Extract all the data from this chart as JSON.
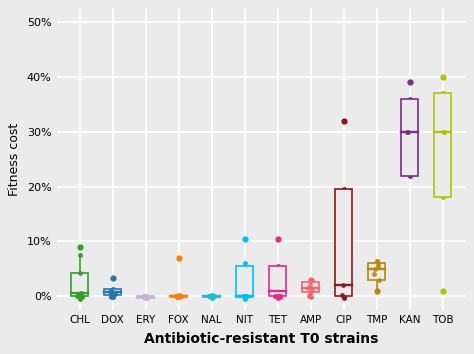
{
  "categories": [
    "CHL",
    "DOX",
    "ERY",
    "FOX",
    "NAL",
    "NIT",
    "TET",
    "AMP",
    "CIP",
    "TMP",
    "KAN",
    "TOB"
  ],
  "colors": [
    "#33a02c",
    "#1f78b4",
    "#cab2d6",
    "#ff7f00",
    "#17becf",
    "#00bfff",
    "#e7298a",
    "#f4636c",
    "#8b1a1a",
    "#b8860b",
    "#7b2d8b",
    "#b2c400"
  ],
  "boxes": [
    {
      "q1": 0.0,
      "median": 0.005,
      "q3": 0.042,
      "whislo": -0.005,
      "whishi": 0.075,
      "pts": [
        0.0,
        0.0,
        -0.002,
        0.0,
        0.0,
        0.001,
        0.0,
        -0.001,
        0.042,
        0.005
      ],
      "fliers_high": [
        0.09
      ],
      "fliers_low": []
    },
    {
      "q1": 0.003,
      "median": 0.007,
      "q3": 0.013,
      "whislo": -0.001,
      "whishi": 0.013,
      "pts": [
        0.007,
        0.005,
        0.003,
        0.009,
        0.01,
        0.001,
        0.0,
        0.0,
        0.0,
        -0.001
      ],
      "fliers_high": [
        0.033
      ],
      "fliers_low": []
    },
    {
      "q1": -0.003,
      "median": -0.001,
      "q3": 0.001,
      "whislo": -0.003,
      "whishi": 0.001,
      "pts": [
        -0.001,
        -0.002,
        -0.001,
        0.001,
        0.0,
        -0.003,
        0.0,
        0.0
      ],
      "fliers_high": [],
      "fliers_low": []
    },
    {
      "q1": -0.001,
      "median": 0.0,
      "q3": 0.001,
      "whislo": -0.002,
      "whishi": 0.002,
      "pts": [
        0.0,
        0.001,
        0.0,
        -0.001,
        0.0,
        0.001,
        0.0
      ],
      "fliers_high": [
        0.07
      ],
      "fliers_low": []
    },
    {
      "q1": -0.002,
      "median": 0.0,
      "q3": 0.0,
      "whislo": -0.003,
      "whishi": 0.002,
      "pts": [
        0.0,
        0.0,
        0.0,
        -0.001,
        0.0,
        0.0,
        0.0,
        0.0,
        0.0,
        0.0,
        0.0
      ],
      "fliers_high": [],
      "fliers_low": []
    },
    {
      "q1": -0.001,
      "median": 0.001,
      "q3": 0.055,
      "whislo": -0.005,
      "whishi": 0.06,
      "pts": [
        0.0,
        -0.001,
        0.0,
        0.001,
        0.0,
        0.0
      ],
      "fliers_high": [
        0.105
      ],
      "fliers_low": []
    },
    {
      "q1": 0.0,
      "median": 0.01,
      "q3": 0.055,
      "whislo": -0.003,
      "whishi": 0.055,
      "pts": [
        0.0,
        -0.001,
        0.0,
        0.001,
        0.0,
        0.0
      ],
      "fliers_high": [
        0.105
      ],
      "fliers_low": []
    },
    {
      "q1": 0.008,
      "median": 0.015,
      "q3": 0.025,
      "whislo": -0.002,
      "whishi": 0.025,
      "pts": [
        0.015,
        0.02,
        0.005,
        0.0,
        0.012
      ],
      "fliers_high": [
        0.03
      ],
      "fliers_low": []
    },
    {
      "q1": 0.0,
      "median": 0.02,
      "q3": 0.195,
      "whislo": -0.003,
      "whishi": 0.195,
      "pts": [
        0.02,
        0.003,
        -0.002
      ],
      "fliers_high": [
        0.32
      ],
      "fliers_low": []
    },
    {
      "q1": 0.03,
      "median": 0.05,
      "q3": 0.06,
      "whislo": 0.01,
      "whishi": 0.065,
      "pts": [
        0.05,
        0.055,
        0.04,
        0.03,
        0.06
      ],
      "fliers_high": [],
      "fliers_low": [
        0.01
      ]
    },
    {
      "q1": 0.22,
      "median": 0.3,
      "q3": 0.36,
      "whislo": 0.22,
      "whishi": 0.36,
      "pts": [
        0.3,
        0.3
      ],
      "fliers_high": [
        0.39
      ],
      "fliers_low": []
    },
    {
      "q1": 0.18,
      "median": 0.3,
      "q3": 0.37,
      "whislo": 0.18,
      "whishi": 0.37,
      "pts": [
        0.3,
        0.3
      ],
      "fliers_high": [
        0.4
      ],
      "fliers_low": [
        0.01
      ]
    }
  ],
  "ylabel": "Fitness cost",
  "xlabel": "Antibiotic-resistant T0 strains",
  "ylim": [
    -0.025,
    0.525
  ],
  "yticks": [
    0.0,
    0.1,
    0.2,
    0.3,
    0.4,
    0.5
  ],
  "ytick_labels": [
    "0%",
    "10%",
    "20%",
    "30%",
    "40%",
    "50%"
  ],
  "bg_color": "#ebebeb",
  "grid_color": "#ffffff",
  "linewidth": 1.2,
  "flier_size": 3.5,
  "pt_size": 2.5,
  "box_width": 0.5
}
